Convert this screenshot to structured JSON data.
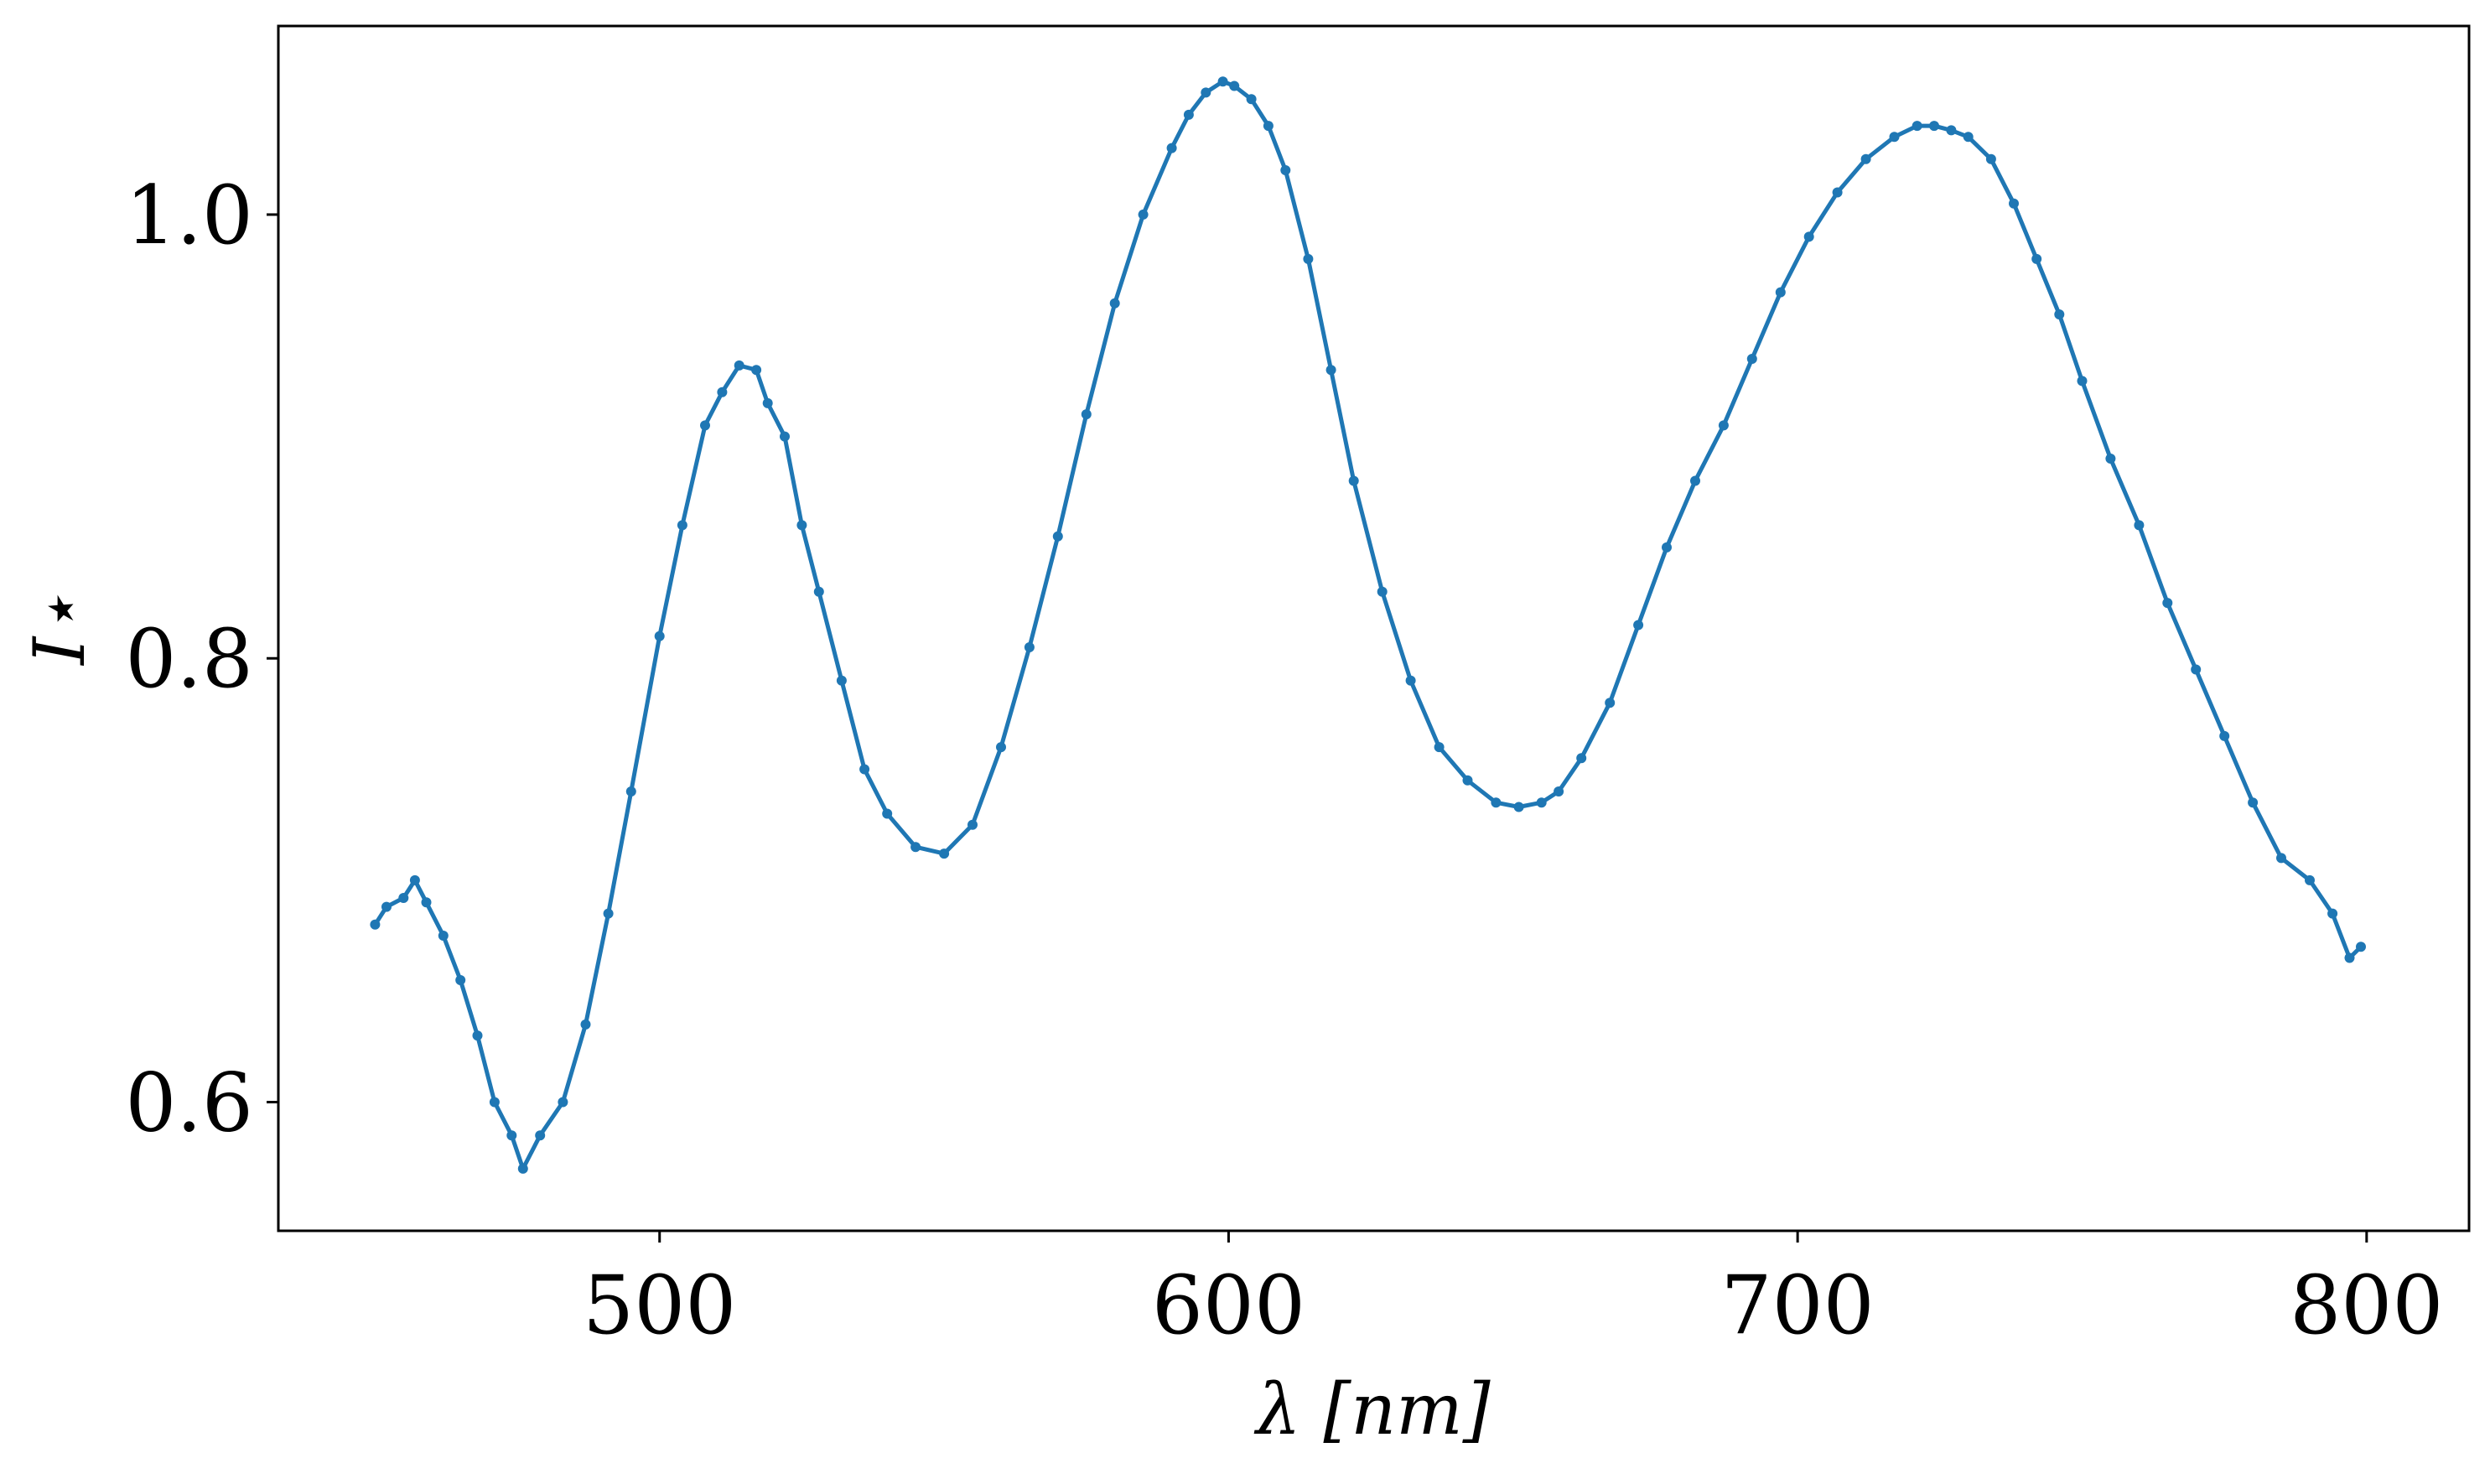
{
  "chart_data": {
    "type": "line",
    "title": "",
    "xlabel": "λ [nm]",
    "ylabel": "I⋆",
    "xlim": [
      433,
      818
    ],
    "ylim": [
      0.542,
      1.085
    ],
    "xticks": [
      500,
      600,
      700,
      800
    ],
    "yticks": [
      0.6,
      0.8,
      1.0
    ],
    "xtick_labels": [
      "500",
      "600",
      "700",
      "800"
    ],
    "ytick_labels": [
      "0.6",
      "0.8",
      "1.0"
    ],
    "grid": false,
    "legend": "none",
    "series": [
      {
        "color": "#1f77b4",
        "marker": "dot",
        "x": [
          450,
          452,
          455,
          457,
          459,
          462,
          465,
          468,
          471,
          474,
          476,
          479,
          483,
          487,
          491,
          495,
          500,
          504,
          508,
          511,
          514,
          517,
          519,
          522,
          525,
          528,
          532,
          536,
          540,
          545,
          550,
          555,
          560,
          565,
          570,
          575,
          580,
          585,
          590,
          593,
          596,
          599,
          601,
          604,
          607,
          610,
          614,
          618,
          622,
          627,
          632,
          637,
          642,
          647,
          651,
          655,
          658,
          662,
          667,
          672,
          677,
          682,
          687,
          692,
          697,
          702,
          707,
          712,
          717,
          721,
          724,
          727,
          730,
          734,
          738,
          742,
          746,
          750,
          755,
          760,
          765,
          770,
          775,
          780,
          785,
          790,
          794,
          797,
          799
        ],
        "y": [
          0.68,
          0.688,
          0.692,
          0.7,
          0.69,
          0.675,
          0.655,
          0.63,
          0.6,
          0.585,
          0.57,
          0.585,
          0.6,
          0.635,
          0.685,
          0.74,
          0.81,
          0.86,
          0.905,
          0.92,
          0.932,
          0.93,
          0.915,
          0.9,
          0.86,
          0.83,
          0.79,
          0.75,
          0.73,
          0.715,
          0.712,
          0.725,
          0.76,
          0.805,
          0.855,
          0.91,
          0.96,
          1.0,
          1.03,
          1.045,
          1.055,
          1.06,
          1.058,
          1.052,
          1.04,
          1.02,
          0.98,
          0.93,
          0.88,
          0.83,
          0.79,
          0.76,
          0.745,
          0.735,
          0.733,
          0.735,
          0.74,
          0.755,
          0.78,
          0.815,
          0.85,
          0.88,
          0.905,
          0.935,
          0.965,
          0.99,
          1.01,
          1.025,
          1.035,
          1.04,
          1.04,
          1.038,
          1.035,
          1.025,
          1.005,
          0.98,
          0.955,
          0.925,
          0.89,
          0.86,
          0.825,
          0.795,
          0.765,
          0.735,
          0.71,
          0.7,
          0.685,
          0.665,
          0.67
        ]
      }
    ]
  }
}
